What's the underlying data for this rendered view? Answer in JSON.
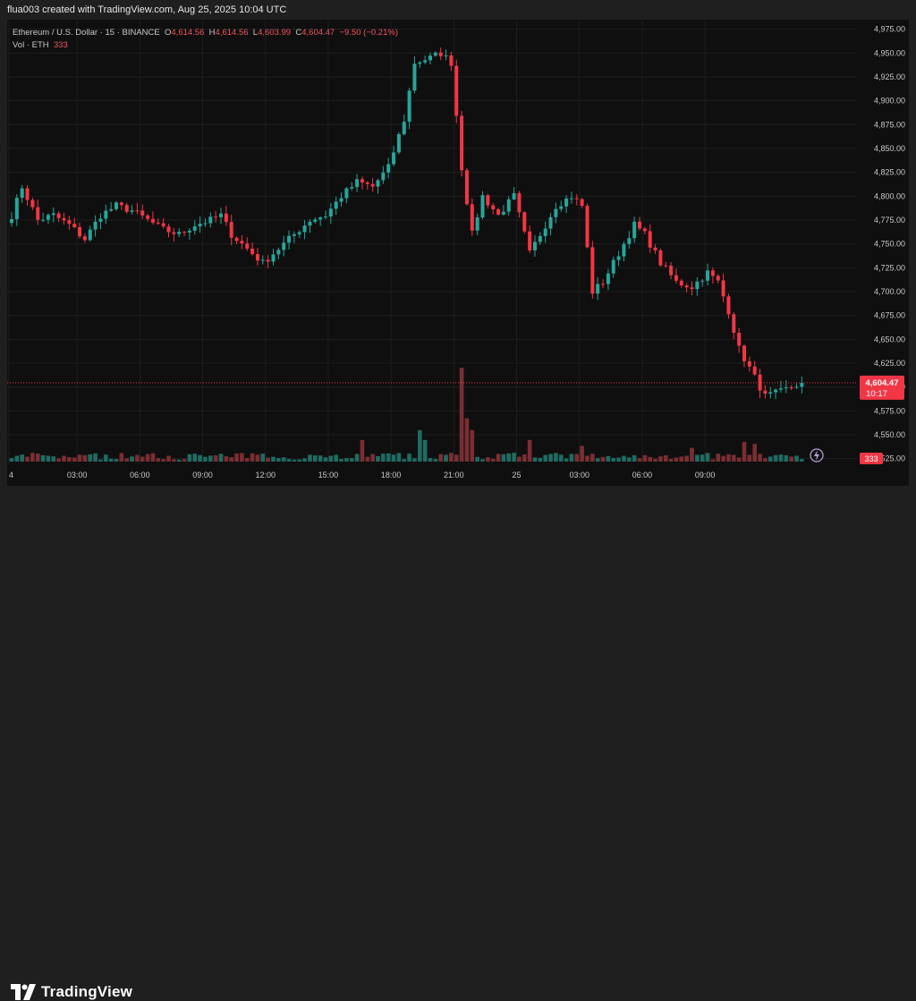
{
  "credit": "flua003 created with TradingView.com, Aug 25, 2025 10:04 UTC",
  "legend": {
    "symbol": "Ethereum / U.S. Dollar · 15 · BINANCE",
    "o_label": "O",
    "o_value": "4,614.56",
    "h_label": "H",
    "h_value": "4,614.56",
    "l_label": "L",
    "l_value": "4,603.99",
    "c_label": "C",
    "c_value": "4,604.47",
    "change": "−9.50 (−0.21%)",
    "vol_label": "Vol · ETH",
    "vol_value": "333"
  },
  "price_badge": {
    "price": "4,604.47",
    "countdown": "10:17",
    "color": "#f23645"
  },
  "volume_badge": {
    "value": "333",
    "color": "#f23645"
  },
  "colors": {
    "up": "#26a69a",
    "down": "#f23645",
    "up_vol": "#1f6b62",
    "down_vol": "#7a2e33",
    "background": "#0f0f0f",
    "grid": "#1e1e1e"
  },
  "logo_text": "TradingView",
  "chart_data": {
    "type": "candlestick",
    "y_axis": {
      "ticks": [
        "4,975.00",
        "4,950.00",
        "4,925.00",
        "4,900.00",
        "4,875.00",
        "4,850.00",
        "4,825.00",
        "4,800.00",
        "4,775.00",
        "4,750.00",
        "4,725.00",
        "4,700.00",
        "4,675.00",
        "4,650.00",
        "4,625.00",
        "4,600.00",
        "4,575.00",
        "4,550.00",
        "4,525.00"
      ],
      "range": [
        4520,
        4985
      ],
      "position": "right"
    },
    "x_axis": {
      "ticks": [
        "4",
        "03:00",
        "06:00",
        "09:00",
        "12:00",
        "15:00",
        "18:00",
        "21:00",
        "25",
        "03:00",
        "06:00",
        "09:00"
      ]
    },
    "last_price": 4604.47,
    "grid": true,
    "anchors": [
      [
        0,
        4780
      ],
      [
        2,
        4810
      ],
      [
        5,
        4775
      ],
      [
        8,
        4780
      ],
      [
        11,
        4770
      ],
      [
        14,
        4755
      ],
      [
        17,
        4780
      ],
      [
        20,
        4790
      ],
      [
        23,
        4785
      ],
      [
        26,
        4775
      ],
      [
        29,
        4765
      ],
      [
        32,
        4760
      ],
      [
        35,
        4770
      ],
      [
        38,
        4775
      ],
      [
        40,
        4780
      ],
      [
        42,
        4760
      ],
      [
        45,
        4745
      ],
      [
        48,
        4730
      ],
      [
        51,
        4745
      ],
      [
        54,
        4760
      ],
      [
        57,
        4775
      ],
      [
        60,
        4780
      ],
      [
        63,
        4800
      ],
      [
        66,
        4815
      ],
      [
        69,
        4810
      ],
      [
        72,
        4830
      ],
      [
        75,
        4880
      ],
      [
        77,
        4940
      ],
      [
        80,
        4945
      ],
      [
        82,
        4950
      ],
      [
        84,
        4940
      ],
      [
        86,
        4830
      ],
      [
        88,
        4760
      ],
      [
        90,
        4800
      ],
      [
        93,
        4780
      ],
      [
        96,
        4800
      ],
      [
        99,
        4740
      ],
      [
        101,
        4760
      ],
      [
        104,
        4790
      ],
      [
        107,
        4800
      ],
      [
        109,
        4790
      ],
      [
        111,
        4700
      ],
      [
        113,
        4710
      ],
      [
        116,
        4740
      ],
      [
        119,
        4770
      ],
      [
        121,
        4760
      ],
      [
        124,
        4730
      ],
      [
        127,
        4710
      ],
      [
        130,
        4705
      ],
      [
        133,
        4720
      ],
      [
        135,
        4710
      ],
      [
        137,
        4680
      ],
      [
        139,
        4640
      ],
      [
        142,
        4610
      ],
      [
        144,
        4590
      ],
      [
        147,
        4595
      ],
      [
        149,
        4600
      ],
      [
        151,
        4604.47
      ]
    ],
    "volume_peaks": [
      [
        86,
        5.0
      ],
      [
        87,
        2.2
      ],
      [
        88,
        1.6
      ],
      [
        78,
        1.6
      ],
      [
        79,
        1.1
      ],
      [
        67,
        1.1
      ],
      [
        99,
        1.1
      ],
      [
        109,
        0.8
      ],
      [
        140,
        1.0
      ],
      [
        142,
        0.9
      ],
      [
        130,
        0.7
      ]
    ]
  }
}
